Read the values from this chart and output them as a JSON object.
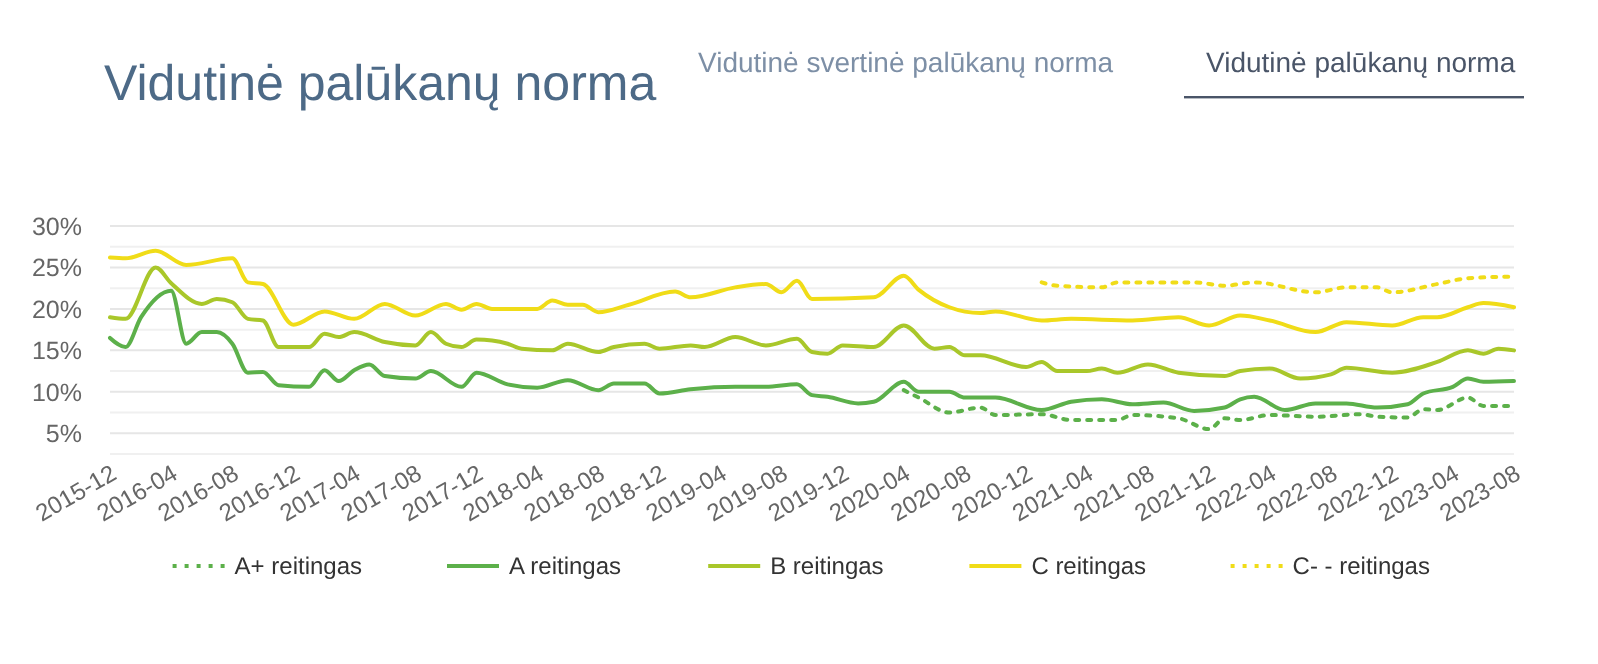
{
  "chart_data": {
    "type": "line",
    "title": "Vidutinė palūkanų norma",
    "annotations": [
      "Vidutinė svertinė palūkanų norma",
      "Vidutinė palūkanų norma"
    ],
    "xlim": [
      "2015-12",
      "2023-08"
    ],
    "xticks": [
      "2015-12",
      "2016-04",
      "2016-08",
      "2016-12",
      "2017-04",
      "2017-08",
      "2017-12",
      "2018-04",
      "2018-08",
      "2018-12",
      "2019-04",
      "2019-08",
      "2019-12",
      "2020-04",
      "2020-08",
      "2020-12",
      "2021-04",
      "2021-08",
      "2021-12",
      "2022-04",
      "2022-08",
      "2022-12",
      "2023-04",
      "2023-08"
    ],
    "ylim": [
      2.5,
      30
    ],
    "yticks": [
      {
        "value": 2.5,
        "label": null
      },
      {
        "value": 5,
        "label": "5%"
      },
      {
        "value": 7.5,
        "label": null
      },
      {
        "value": 10,
        "label": "10%"
      },
      {
        "value": 12.5,
        "label": null
      },
      {
        "value": 15,
        "label": "15%"
      },
      {
        "value": 17.5,
        "label": null
      },
      {
        "value": 20,
        "label": "20%"
      },
      {
        "value": 22.5,
        "label": null
      },
      {
        "value": 25,
        "label": "25%"
      },
      {
        "value": 27.5,
        "label": null
      },
      {
        "value": 30,
        "label": "30%"
      }
    ],
    "grid": "y",
    "legend": "bottom",
    "series": [
      {
        "name": "A+ reitingas",
        "color": "#5cb04a",
        "line_style": "dotted",
        "x": [
          "2020-04",
          "2020-05",
          "2020-07",
          "2020-09",
          "2020-10",
          "2021-01",
          "2021-03",
          "2021-06",
          "2021-07",
          "2021-10",
          "2021-12",
          "2022-01",
          "2022-02",
          "2022-04",
          "2022-07",
          "2022-10",
          "2022-11",
          "2023-01",
          "2023-02",
          "2023-03",
          "2023-05",
          "2023-06",
          "2023-08"
        ],
        "values": [
          10.2,
          9.3,
          7.5,
          8.1,
          7.2,
          7.3,
          6.6,
          6.6,
          7.2,
          6.8,
          5.5,
          6.8,
          6.6,
          7.2,
          7.0,
          7.3,
          7.0,
          6.9,
          7.9,
          7.8,
          9.3,
          8.3,
          8.3
        ]
      },
      {
        "name": "A reitingas",
        "color": "#5cb04a",
        "line_style": "solid",
        "x": [
          "2015-12",
          "2016-01",
          "2016-02",
          "2016-04",
          "2016-05",
          "2016-06",
          "2016-07",
          "2016-08",
          "2016-09",
          "2016-10",
          "2016-11",
          "2017-01",
          "2017-02",
          "2017-03",
          "2017-04",
          "2017-05",
          "2017-06",
          "2017-08",
          "2017-09",
          "2017-11",
          "2017-12",
          "2018-02",
          "2018-04",
          "2018-06",
          "2018-08",
          "2018-09",
          "2018-11",
          "2018-12",
          "2019-02",
          "2019-05",
          "2019-07",
          "2019-09",
          "2019-10",
          "2019-11",
          "2020-01",
          "2020-02",
          "2020-04",
          "2020-05",
          "2020-07",
          "2020-08",
          "2020-10",
          "2021-01",
          "2021-03",
          "2021-05",
          "2021-07",
          "2021-09",
          "2021-11",
          "2022-01",
          "2022-02",
          "2022-03",
          "2022-05",
          "2022-07",
          "2022-09",
          "2022-11",
          "2023-01",
          "2023-02",
          "2023-04",
          "2023-05",
          "2023-06",
          "2023-08"
        ],
        "values": [
          16.5,
          15.4,
          19.0,
          22.2,
          15.8,
          17.2,
          17.2,
          15.8,
          12.3,
          12.4,
          10.8,
          10.6,
          12.6,
          11.3,
          12.6,
          13.3,
          11.9,
          11.6,
          12.5,
          10.6,
          12.3,
          10.9,
          10.5,
          11.4,
          10.2,
          11.0,
          11.0,
          9.8,
          10.3,
          10.6,
          10.6,
          10.9,
          9.6,
          9.4,
          8.6,
          8.8,
          11.2,
          10.0,
          10.0,
          9.3,
          9.3,
          7.8,
          8.8,
          9.1,
          8.5,
          8.7,
          7.7,
          8.1,
          9.1,
          9.4,
          7.8,
          8.6,
          8.6,
          8.1,
          8.5,
          9.8,
          10.6,
          11.6,
          11.2,
          11.3
        ]
      },
      {
        "name": "B reitingas",
        "color": "#a9c72a",
        "line_style": "solid",
        "x": [
          "2015-12",
          "2016-01",
          "2016-03",
          "2016-04",
          "2016-06",
          "2016-07",
          "2016-08",
          "2016-09",
          "2016-10",
          "2016-11",
          "2017-01",
          "2017-02",
          "2017-03",
          "2017-04",
          "2017-06",
          "2017-08",
          "2017-09",
          "2017-10",
          "2017-11",
          "2017-12",
          "2018-02",
          "2018-03",
          "2018-05",
          "2018-06",
          "2018-08",
          "2018-09",
          "2018-11",
          "2018-12",
          "2019-02",
          "2019-03",
          "2019-05",
          "2019-07",
          "2019-09",
          "2019-10",
          "2019-11",
          "2019-12",
          "2020-02",
          "2020-04",
          "2020-06",
          "2020-07",
          "2020-08",
          "2020-09",
          "2020-12",
          "2021-01",
          "2021-02",
          "2021-04",
          "2021-05",
          "2021-06",
          "2021-08",
          "2021-10",
          "2022-01",
          "2022-02",
          "2022-04",
          "2022-06",
          "2022-08",
          "2022-09",
          "2022-12",
          "2023-03",
          "2023-05",
          "2023-06",
          "2023-07",
          "2023-08"
        ],
        "values": [
          19.0,
          18.8,
          25.0,
          23.1,
          20.6,
          21.2,
          20.8,
          18.8,
          18.6,
          15.4,
          15.4,
          17.0,
          16.6,
          17.2,
          16.0,
          15.6,
          17.2,
          15.8,
          15.4,
          16.3,
          15.8,
          15.2,
          15.0,
          15.8,
          14.8,
          15.4,
          15.8,
          15.2,
          15.6,
          15.4,
          16.6,
          15.6,
          16.4,
          14.8,
          14.6,
          15.6,
          15.4,
          18.0,
          15.2,
          15.4,
          14.4,
          14.4,
          13.0,
          13.6,
          12.5,
          12.5,
          12.8,
          12.3,
          13.3,
          12.3,
          11.9,
          12.5,
          12.8,
          11.6,
          12.1,
          12.9,
          12.3,
          13.6,
          15.0,
          14.6,
          15.2,
          15.0
        ]
      },
      {
        "name": "C reitingas",
        "color": "#f0dc18",
        "line_style": "solid",
        "x": [
          "2015-12",
          "2016-01",
          "2016-03",
          "2016-05",
          "2016-08",
          "2016-09",
          "2016-10",
          "2016-12",
          "2017-02",
          "2017-04",
          "2017-06",
          "2017-08",
          "2017-10",
          "2017-11",
          "2017-12",
          "2018-01",
          "2018-04",
          "2018-05",
          "2018-06",
          "2018-07",
          "2018-08",
          "2018-10",
          "2019-01",
          "2019-02",
          "2019-05",
          "2019-07",
          "2019-08",
          "2019-09",
          "2019-10",
          "2020-02",
          "2020-04",
          "2020-05",
          "2020-07",
          "2020-09",
          "2020-10",
          "2021-01",
          "2021-03",
          "2021-07",
          "2021-10",
          "2021-12",
          "2022-02",
          "2022-04",
          "2022-07",
          "2022-09",
          "2022-12",
          "2023-02",
          "2023-03",
          "2023-05",
          "2023-06",
          "2023-08"
        ],
        "values": [
          26.2,
          26.1,
          27.0,
          25.3,
          26.1,
          23.2,
          23.0,
          18.1,
          19.7,
          18.8,
          20.6,
          19.2,
          20.6,
          19.9,
          20.6,
          20.0,
          20.0,
          21.0,
          20.5,
          20.5,
          19.6,
          20.5,
          22.1,
          21.4,
          22.6,
          23.0,
          22.0,
          23.4,
          21.2,
          21.4,
          24.0,
          22.3,
          20.2,
          19.5,
          19.7,
          18.6,
          18.8,
          18.6,
          19.0,
          18.0,
          19.2,
          18.6,
          17.2,
          18.4,
          18.0,
          19.0,
          19.0,
          20.2,
          20.7,
          20.2
        ]
      },
      {
        "name": "C- - reitingas",
        "color": "#f0dc18",
        "line_style": "dotted",
        "x": [
          "2021-01",
          "2021-02",
          "2021-05",
          "2021-06",
          "2021-11",
          "2022-01",
          "2022-03",
          "2022-07",
          "2022-09",
          "2022-11",
          "2022-12",
          "2023-03",
          "2023-05",
          "2023-08"
        ],
        "values": [
          23.2,
          22.8,
          22.6,
          23.2,
          23.2,
          22.8,
          23.2,
          22.0,
          22.6,
          22.6,
          22.0,
          23.0,
          23.7,
          23.9
        ]
      }
    ]
  }
}
